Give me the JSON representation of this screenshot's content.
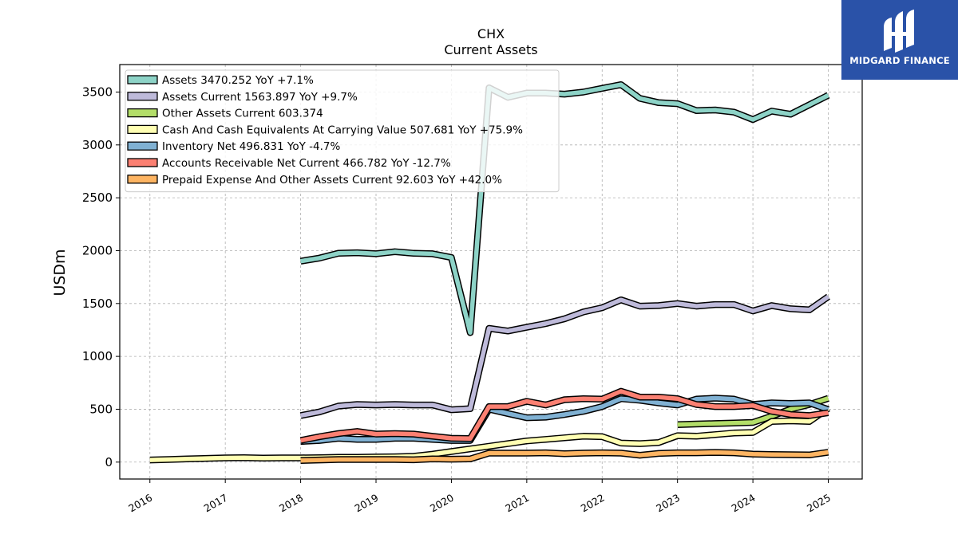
{
  "chart_data": {
    "type": "line",
    "title": "CHX",
    "subtitle": "Current  Assets",
    "ylabel": "USDm",
    "xlabel": "",
    "xlim": [
      2015.6,
      2025.45
    ],
    "ylim": [
      -160,
      3760
    ],
    "y_ticks": [
      0,
      500,
      1000,
      1500,
      2000,
      2500,
      3000,
      3500
    ],
    "x_ticks": [
      "2016",
      "2017",
      "2018",
      "2019",
      "2020",
      "2021",
      "2022",
      "2023",
      "2024",
      "2025"
    ],
    "grid": true,
    "legend_position": "top-left",
    "series": [
      {
        "name": "Assets",
        "legend": "Assets  3470.252 YoY +7.1%",
        "color": "#8dd3c7",
        "x": [
          2018.0,
          2018.25,
          2018.5,
          2018.75,
          2019.0,
          2019.25,
          2019.5,
          2019.75,
          2020.0,
          2020.25,
          2020.5,
          2020.75,
          2021.0,
          2021.25,
          2021.5,
          2021.75,
          2022.0,
          2022.25,
          2022.5,
          2022.75,
          2023.0,
          2023.25,
          2023.5,
          2023.75,
          2024.0,
          2024.25,
          2024.5,
          2024.75,
          2025.0
        ],
        "y": [
          1900,
          1930,
          1975,
          1980,
          1970,
          1990,
          1975,
          1970,
          1935,
          1225,
          3540,
          3450,
          3490,
          3490,
          3480,
          3500,
          3535,
          3570,
          3440,
          3400,
          3390,
          3325,
          3330,
          3310,
          3240,
          3320,
          3290,
          3380,
          3470
        ]
      },
      {
        "name": "Assets Current",
        "legend": "Assets Current  1563.897 YoY +9.7%",
        "color": "#bebada",
        "x": [
          2018.0,
          2018.25,
          2018.5,
          2018.75,
          2019.0,
          2019.25,
          2019.5,
          2019.75,
          2020.0,
          2020.25,
          2020.5,
          2020.75,
          2021.0,
          2021.25,
          2021.5,
          2021.75,
          2022.0,
          2022.25,
          2022.5,
          2022.75,
          2023.0,
          2023.25,
          2023.5,
          2023.75,
          2024.0,
          2024.25,
          2024.5,
          2024.75,
          2025.0
        ],
        "y": [
          440,
          475,
          530,
          545,
          540,
          545,
          540,
          540,
          495,
          505,
          1265,
          1240,
          1275,
          1310,
          1355,
          1420,
          1460,
          1535,
          1475,
          1480,
          1500,
          1475,
          1490,
          1490,
          1430,
          1480,
          1450,
          1440,
          1565
        ]
      },
      {
        "name": "Other Assets Current",
        "legend": "Other Assets Current  603.374",
        "color": "#b3de69",
        "x": [
          2023.0,
          2023.25,
          2023.5,
          2023.75,
          2024.0,
          2024.25,
          2024.5,
          2024.75,
          2025.0
        ],
        "y": [
          355,
          360,
          365,
          370,
          375,
          435,
          500,
          545,
          603
        ]
      },
      {
        "name": "Cash And Cash Equivalents At Carrying Value",
        "legend": "Cash And Cash Equivalents At Carrying Value  507.681 YoY +75.9%",
        "color": "#ffffb3",
        "x": [
          2016.0,
          2016.25,
          2016.5,
          2016.75,
          2017.0,
          2017.25,
          2017.5,
          2017.75,
          2018.0,
          2018.25,
          2018.5,
          2018.75,
          2019.0,
          2019.25,
          2019.5,
          2019.75,
          2020.0,
          2020.25,
          2020.5,
          2020.75,
          2021.0,
          2021.25,
          2021.5,
          2021.75,
          2022.0,
          2022.25,
          2022.5,
          2022.75,
          2023.0,
          2023.25,
          2023.5,
          2023.75,
          2024.0,
          2024.25,
          2024.5,
          2024.75,
          2025.0
        ],
        "y": [
          20,
          25,
          30,
          35,
          40,
          42,
          38,
          40,
          40,
          42,
          45,
          45,
          48,
          50,
          55,
          75,
          100,
          125,
          150,
          175,
          200,
          215,
          230,
          245,
          240,
          180,
          175,
          185,
          250,
          245,
          260,
          275,
          280,
          385,
          390,
          385,
          508
        ]
      },
      {
        "name": "Inventory Net",
        "legend": "Inventory Net  496.831 YoY -4.7%",
        "color": "#80b1d3",
        "x": [
          2018.0,
          2018.25,
          2018.5,
          2018.75,
          2019.0,
          2019.25,
          2019.5,
          2019.75,
          2020.0,
          2020.25,
          2020.5,
          2020.75,
          2021.0,
          2021.25,
          2021.5,
          2021.75,
          2022.0,
          2022.25,
          2022.5,
          2022.75,
          2023.0,
          2023.25,
          2023.5,
          2023.75,
          2024.0,
          2024.25,
          2024.5,
          2024.75,
          2025.0
        ],
        "y": [
          195,
          205,
          225,
          215,
          215,
          225,
          225,
          215,
          205,
          205,
          500,
          460,
          420,
          425,
          450,
          480,
          525,
          600,
          585,
          560,
          540,
          595,
          605,
          595,
          545,
          560,
          555,
          560,
          497
        ]
      },
      {
        "name": "Accounts Receivable Net Current",
        "legend": "Accounts Receivable Net Current  466.782 YoY -12.7%",
        "color": "#fb8072",
        "x": [
          2018.0,
          2018.25,
          2018.5,
          2018.75,
          2019.0,
          2019.25,
          2019.5,
          2019.75,
          2020.0,
          2020.25,
          2020.5,
          2020.75,
          2021.0,
          2021.25,
          2021.5,
          2021.75,
          2022.0,
          2022.25,
          2022.5,
          2022.75,
          2023.0,
          2023.25,
          2023.5,
          2023.75,
          2024.0,
          2024.25,
          2024.5,
          2024.75,
          2025.0
        ],
        "y": [
          205,
          240,
          270,
          290,
          265,
          270,
          265,
          245,
          225,
          222,
          525,
          525,
          575,
          540,
          590,
          600,
          595,
          670,
          615,
          615,
          600,
          545,
          525,
          525,
          535,
          480,
          450,
          440,
          467
        ]
      },
      {
        "name": "Prepaid Expense And Other Assets Current",
        "legend": "Prepaid Expense And Other Assets Current  92.603 YoY +42.0%",
        "color": "#fdb462",
        "x": [
          2018.0,
          2018.25,
          2018.5,
          2018.75,
          2019.0,
          2019.25,
          2019.5,
          2019.75,
          2020.0,
          2020.25,
          2020.5,
          2020.75,
          2021.0,
          2021.25,
          2021.5,
          2021.75,
          2022.0,
          2022.25,
          2022.5,
          2022.75,
          2023.0,
          2023.25,
          2023.5,
          2023.75,
          2024.0,
          2024.25,
          2024.5,
          2024.75,
          2025.0
        ],
        "y": [
          15,
          20,
          25,
          25,
          25,
          25,
          22,
          30,
          28,
          30,
          85,
          85,
          85,
          88,
          80,
          85,
          88,
          85,
          65,
          82,
          88,
          88,
          92,
          88,
          75,
          72,
          70,
          68,
          93
        ]
      }
    ]
  },
  "logo": {
    "name": "MIDGARD FINANCE",
    "bg_color": "#2a52a8"
  }
}
